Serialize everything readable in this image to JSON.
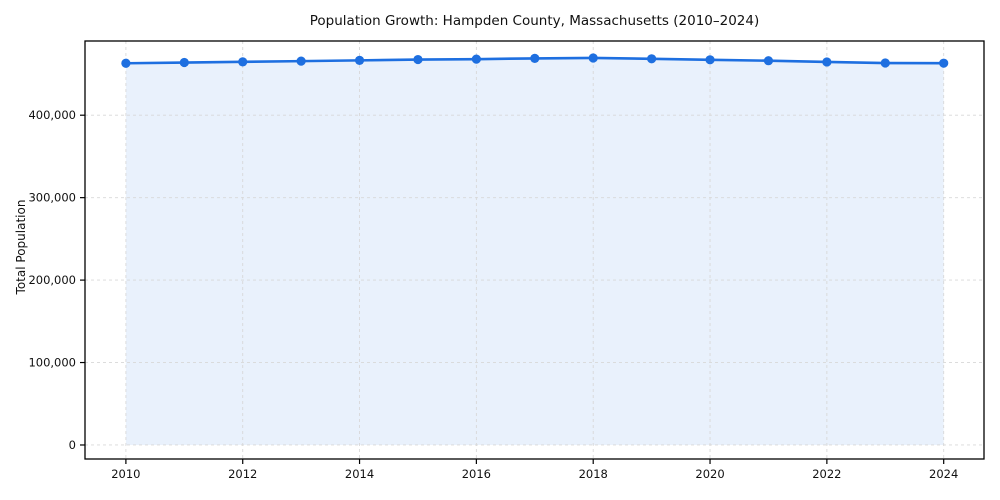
{
  "chart_data": {
    "type": "line",
    "title": "Population Growth: Hampden County, Massachusetts (2010–2024)",
    "xlabel": "",
    "ylabel": "Total Population",
    "series": [
      {
        "name": "Total Population",
        "x": [
          2010,
          2011,
          2012,
          2013,
          2014,
          2015,
          2016,
          2017,
          2018,
          2019,
          2020,
          2021,
          2022,
          2023,
          2024
        ],
        "values": [
          463000,
          463900,
          464700,
          465600,
          466500,
          467500,
          468000,
          468900,
          469400,
          468400,
          467200,
          466100,
          464600,
          463300,
          463100
        ]
      }
    ],
    "x_ticks": {
      "values": [
        2010,
        2012,
        2014,
        2016,
        2018,
        2020,
        2022,
        2024
      ],
      "labels": [
        "2010",
        "2012",
        "2014",
        "2016",
        "2018",
        "2020",
        "2022",
        "2024"
      ]
    },
    "y_ticks": {
      "values": [
        0,
        100000,
        200000,
        300000,
        400000
      ],
      "labels": [
        "0",
        "100,000",
        "200,000",
        "300,000",
        "400,000"
      ]
    },
    "xlim": [
      2009.3,
      2024.69
    ],
    "ylim": [
      -17000,
      490000
    ],
    "grid": true,
    "grid_style": "dashed",
    "legend": "none",
    "marker": "circle",
    "area_fill": true,
    "colors": {
      "line": "#1E6FE0",
      "marker": "#1E6FE0",
      "area_fill": "#E9F1FC",
      "grid": "#D8D8D8",
      "spine": "#000000",
      "text": "#111111",
      "background": "#FFFFFF"
    }
  }
}
